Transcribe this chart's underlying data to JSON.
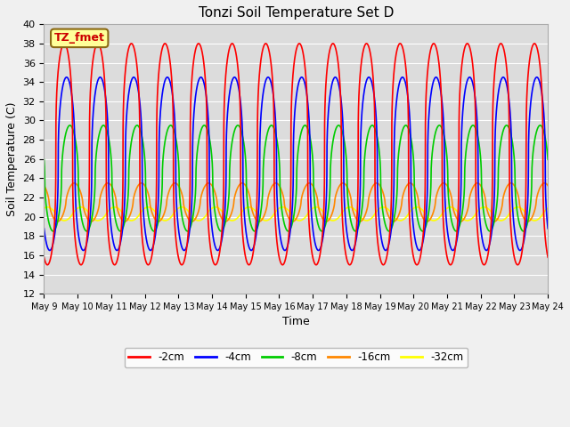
{
  "title": "Tonzi Soil Temperature Set D",
  "xlabel": "Time",
  "ylabel": "Soil Temperature (C)",
  "ylim": [
    12,
    40
  ],
  "xlim": [
    0,
    15
  ],
  "fig_facecolor": "#f0f0f0",
  "plot_bg_color": "#dcdcdc",
  "annotation": "TZ_fmet",
  "annotation_bg": "#ffff99",
  "annotation_border": "#8B6914",
  "annotation_color": "#cc0000",
  "colors": {
    "-2cm": "#ff0000",
    "-4cm": "#0000ff",
    "-8cm": "#00cc00",
    "-16cm": "#ff8800",
    "-32cm": "#ffff00"
  },
  "params": {
    "-2cm": {
      "mean": 26.5,
      "amplitude": 11.5,
      "phase": 0.35,
      "sharpness": 3.0
    },
    "-4cm": {
      "mean": 25.5,
      "amplitude": 9.0,
      "phase": 0.42,
      "sharpness": 2.5
    },
    "-8cm": {
      "mean": 24.0,
      "amplitude": 5.5,
      "phase": 0.52,
      "sharpness": 2.0
    },
    "-16cm": {
      "mean": 21.5,
      "amplitude": 2.0,
      "phase": 0.65,
      "sharpness": 1.5
    },
    "-32cm": {
      "mean": 20.3,
      "amplitude": 0.7,
      "phase": 0.85,
      "sharpness": 1.2
    }
  },
  "xtick_labels": [
    "May 9",
    "May 10",
    "May 11",
    "May 12",
    "May 13",
    "May 14",
    "May 15",
    "May 16",
    "May 17",
    "May 18",
    "May 19",
    "May 20",
    "May 21",
    "May 22",
    "May 23",
    "May 24"
  ],
  "xtick_positions": [
    0,
    1,
    2,
    3,
    4,
    5,
    6,
    7,
    8,
    9,
    10,
    11,
    12,
    13,
    14,
    15
  ],
  "yticks": [
    12,
    14,
    16,
    18,
    20,
    22,
    24,
    26,
    28,
    30,
    32,
    34,
    36,
    38,
    40
  ],
  "grid_color": "#ffffff",
  "line_width": 1.2,
  "draw_order": [
    "-32cm",
    "-16cm",
    "-8cm",
    "-4cm",
    "-2cm"
  ]
}
